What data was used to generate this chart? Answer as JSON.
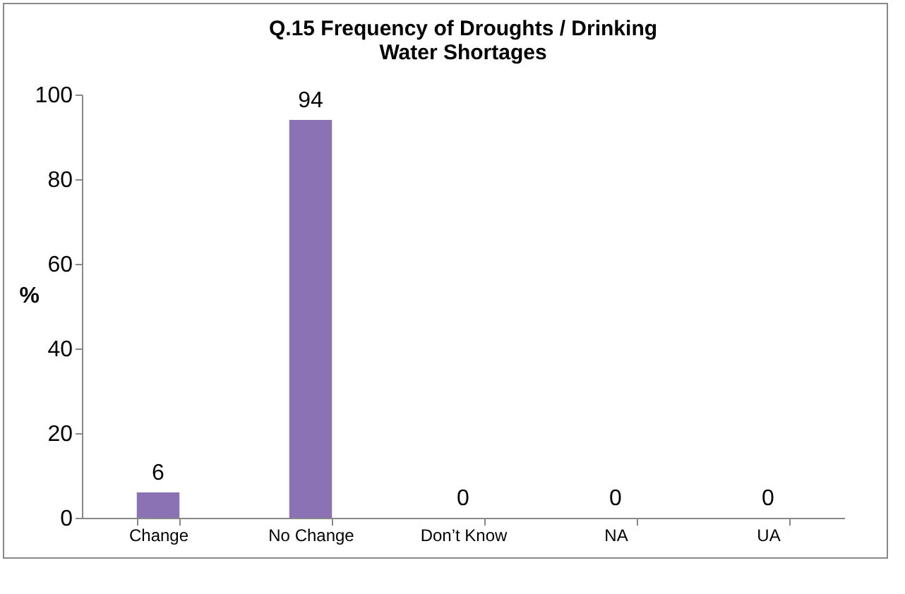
{
  "chart_data": {
    "type": "bar",
    "title": "Q.15 Frequency of Droughts / Drinking Water Shortages",
    "ylabel": "%",
    "categories": [
      "Change",
      "No Change",
      "Don’t Know",
      "NA",
      "UA"
    ],
    "values": [
      6,
      94,
      0,
      0,
      0
    ],
    "color": "#8a72b5",
    "ylim": [
      0,
      100
    ],
    "yticks": [
      0,
      20,
      40,
      60,
      80,
      100
    ],
    "grid": false,
    "data_labels": true
  }
}
